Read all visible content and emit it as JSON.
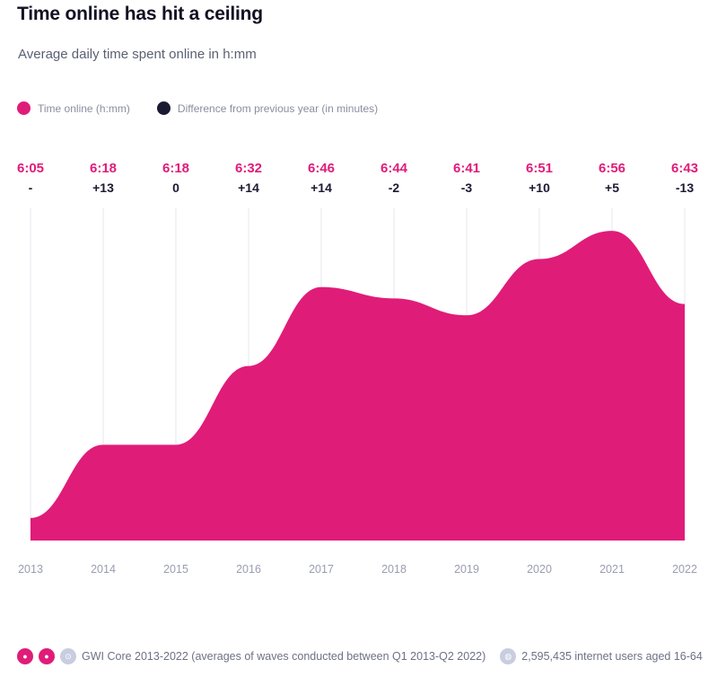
{
  "colors": {
    "accent": "#e01c79",
    "dark": "#1b1a33",
    "grid": "#e6e7ee",
    "tick": "#9a9db0"
  },
  "legend": {
    "series1": "Time online (h:mm)",
    "series2": "Difference from previous year (in minutes)"
  },
  "footer": {
    "source": "GWI Core 2013-2022 (averages of waves conducted between Q1 2013-Q2 2022)",
    "sample": "2,595,435 internet users aged 16-64"
  },
  "chart_data": {
    "type": "area",
    "title": "Time online has hit a ceiling",
    "subtitle": "Average daily time spent online in h:mm",
    "x": [
      "2013",
      "2014",
      "2015",
      "2016",
      "2017",
      "2018",
      "2019",
      "2020",
      "2021",
      "2022"
    ],
    "series": [
      {
        "name": "Time online (h:mm)",
        "labels": [
          "6:05",
          "6:18",
          "6:18",
          "6:32",
          "6:46",
          "6:44",
          "6:41",
          "6:51",
          "6:56",
          "6:43"
        ],
        "values_minutes": [
          365,
          378,
          378,
          392,
          406,
          404,
          401,
          411,
          416,
          403
        ]
      },
      {
        "name": "Difference from previous year (in minutes)",
        "labels": [
          "-",
          "+13",
          "0",
          "+14",
          "+14",
          "-2",
          "-3",
          "+10",
          "+5",
          "-13"
        ]
      }
    ],
    "ylim_minutes": [
      361,
      420
    ],
    "grid": "vertical"
  }
}
